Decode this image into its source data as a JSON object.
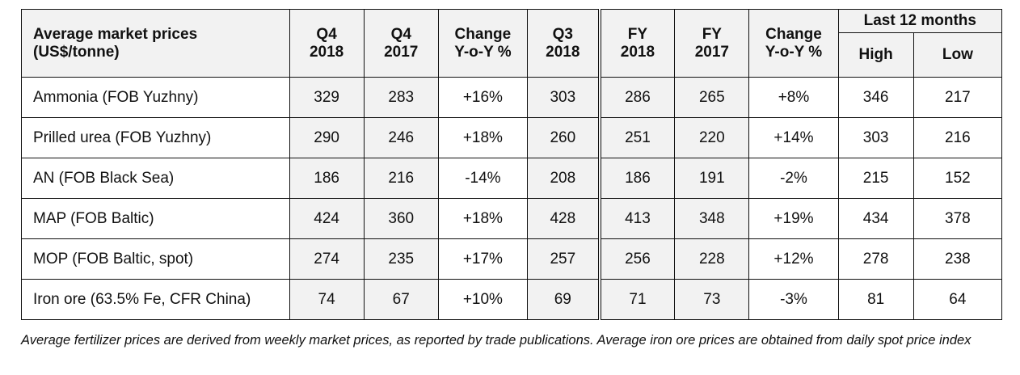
{
  "table": {
    "header": {
      "title_line1": "Average market prices",
      "title_line2": "(US$/tonne)",
      "columns": [
        {
          "key": "q4_2018",
          "line1": "Q4",
          "line2": "2018"
        },
        {
          "key": "q4_2017",
          "line1": "Q4",
          "line2": "2017"
        },
        {
          "key": "chg_q",
          "line1": "Change",
          "line2": "Y-o-Y %"
        },
        {
          "key": "q3_2018",
          "line1": "Q3",
          "line2": "2018"
        },
        {
          "key": "fy_2018",
          "line1": "FY",
          "line2": "2018"
        },
        {
          "key": "fy_2017",
          "line1": "FY",
          "line2": "2017"
        },
        {
          "key": "chg_fy",
          "line1": "Change",
          "line2": "Y-o-Y %"
        }
      ],
      "group_label": "Last 12 months",
      "high_label": "High",
      "low_label": "Low"
    },
    "rows": [
      {
        "label": "Ammonia (FOB Yuzhny)",
        "values": [
          "329",
          "283",
          "+16%",
          "303",
          "286",
          "265",
          "+8%",
          "346",
          "217"
        ]
      },
      {
        "label": "Prilled urea (FOB Yuzhny)",
        "values": [
          "290",
          "246",
          "+18%",
          "260",
          "251",
          "220",
          "+14%",
          "303",
          "216"
        ]
      },
      {
        "label": "AN (FOB Black Sea)",
        "values": [
          "186",
          "216",
          "-14%",
          "208",
          "186",
          "191",
          "-2%",
          "215",
          "152"
        ]
      },
      {
        "label": "MAP (FOB Baltic)",
        "values": [
          "424",
          "360",
          "+18%",
          "428",
          "413",
          "348",
          "+19%",
          "434",
          "378"
        ]
      },
      {
        "label": "MOP (FOB Baltic, spot)",
        "values": [
          "274",
          "235",
          "+17%",
          "257",
          "256",
          "228",
          "+12%",
          "278",
          "238"
        ]
      },
      {
        "label": "Iron ore (63.5% Fe, CFR China)",
        "values": [
          "74",
          "67",
          "+10%",
          "69",
          "71",
          "73",
          "-3%",
          "81",
          "64"
        ]
      }
    ]
  },
  "footnote": "Average fertilizer prices are derived from weekly market prices, as reported by trade publications. Average iron ore prices are obtained from daily spot price index",
  "colors": {
    "header_fill": "#f2f2f2",
    "shaded_cell_fill": "#f2f2f2",
    "border": "#111111"
  }
}
